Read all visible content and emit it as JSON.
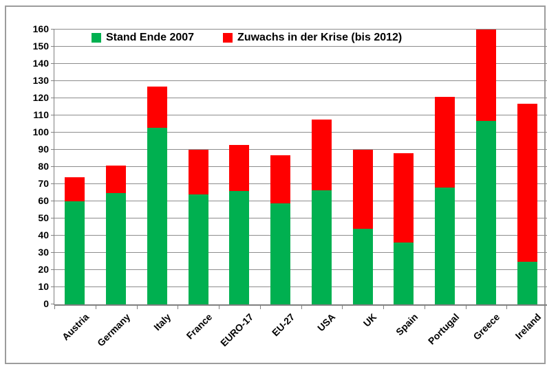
{
  "chart_data": {
    "type": "bar",
    "stacked": true,
    "title": "",
    "xlabel": "",
    "ylabel": "",
    "ylim": [
      0,
      160
    ],
    "ytick_step": 10,
    "grid": true,
    "legend_position": "top-inside",
    "categories": [
      "Austria",
      "Germany",
      "Italy",
      "France",
      "EURO-17",
      "EU-27",
      "USA",
      "UK",
      "Spain",
      "Portugal",
      "Greece",
      "Ireland"
    ],
    "series": [
      {
        "name": "Stand Ende 2007",
        "color": "#00B050",
        "values": [
          60,
          65,
          103,
          64,
          66,
          59,
          66.5,
          44,
          36,
          68,
          107,
          25
        ]
      },
      {
        "name": "Zuwachs in der Krise (bis 2012)",
        "color": "#FF0000",
        "values": [
          14,
          16,
          24,
          26,
          27,
          28,
          41,
          46,
          52,
          53,
          53,
          92
        ]
      }
    ],
    "totals": [
      74,
      81,
      127,
      90,
      93,
      87,
      107.5,
      90,
      88,
      121,
      160,
      117
    ]
  },
  "colors": {
    "gridline": "#8c8c8c",
    "axis": "#7f7f7f",
    "frame_border": "#9c9c9c",
    "background": "#ffffff",
    "text": "#000000"
  }
}
